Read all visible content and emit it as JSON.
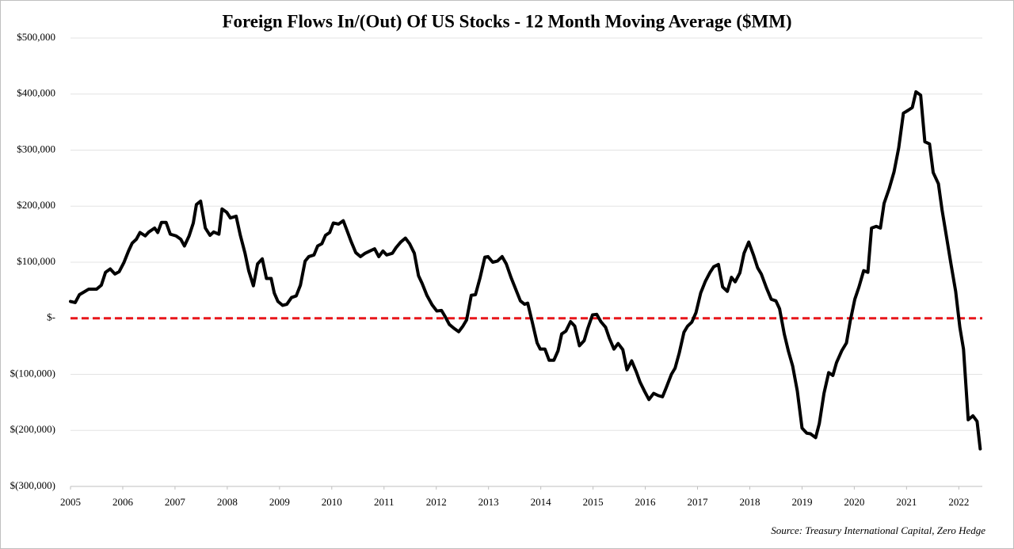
{
  "chart_data": {
    "type": "line",
    "title": "Foreign Flows In/(Out) Of US Stocks  - 12 Month Moving Average ($MM)",
    "source": "Source: Treasury International Capital, Zero Hedge",
    "xlim": [
      2005,
      2022.45
    ],
    "xticks": [
      2005,
      2006,
      2007,
      2008,
      2009,
      2010,
      2011,
      2012,
      2013,
      2014,
      2015,
      2016,
      2017,
      2018,
      2019,
      2020,
      2021,
      2022
    ],
    "ylim": [
      -300000,
      500000
    ],
    "yticks": [
      {
        "value": 500000,
        "label": "$500,000"
      },
      {
        "value": 400000,
        "label": "$400,000"
      },
      {
        "value": 300000,
        "label": "$300,000"
      },
      {
        "value": 200000,
        "label": "$200,000"
      },
      {
        "value": 100000,
        "label": "$100,000"
      },
      {
        "value": 0,
        "label": "$-"
      },
      {
        "value": -100000,
        "label": "$(100,000)"
      },
      {
        "value": -200000,
        "label": "$(200,000)"
      },
      {
        "value": -300000,
        "label": "$(300,000)"
      }
    ],
    "grid": true,
    "reference_line": {
      "value": 0,
      "color": "#e8161b"
    },
    "series": [
      {
        "color": "#000000",
        "x": [
          2005,
          2005.09,
          2005.17,
          2005.26,
          2005.35,
          2005.5,
          2005.59,
          2005.67,
          2005.76,
          2005.85,
          2005.93,
          2006.02,
          2006.11,
          2006.18,
          2006.26,
          2006.33,
          2006.43,
          2006.5,
          2006.61,
          2006.67,
          2006.74,
          2006.83,
          2006.91,
          2007.02,
          2007.11,
          2007.18,
          2007.27,
          2007.35,
          2007.41,
          2007.49,
          2007.58,
          2007.67,
          2007.74,
          2007.84,
          2007.9,
          2007.99,
          2008.06,
          2008.17,
          2008.25,
          2008.34,
          2008.41,
          2008.5,
          2008.58,
          2008.67,
          2008.75,
          2008.84,
          2008.9,
          2008.97,
          2009.06,
          2009.14,
          2009.23,
          2009.32,
          2009.4,
          2009.49,
          2009.56,
          2009.66,
          2009.73,
          2009.81,
          2009.88,
          2009.96,
          2010.03,
          2010.13,
          2010.22,
          2010.29,
          2010.37,
          2010.46,
          2010.55,
          2010.64,
          2010.75,
          2010.82,
          2010.9,
          2010.98,
          2011.05,
          2011.16,
          2011.23,
          2011.32,
          2011.41,
          2011.49,
          2011.58,
          2011.66,
          2011.73,
          2011.82,
          2011.92,
          2012.01,
          2012.1,
          2012.17,
          2012.25,
          2012.34,
          2012.43,
          2012.51,
          2012.58,
          2012.67,
          2012.75,
          2012.84,
          2012.93,
          2012.99,
          2013.08,
          2013.17,
          2013.26,
          2013.34,
          2013.43,
          2013.52,
          2013.61,
          2013.69,
          2013.75,
          2013.84,
          2013.93,
          2013.99,
          2014.08,
          2014.16,
          2014.25,
          2014.33,
          2014.4,
          2014.48,
          2014.57,
          2014.65,
          2014.74,
          2014.83,
          2014.9,
          2014.99,
          2015.07,
          2015.15,
          2015.24,
          2015.31,
          2015.4,
          2015.48,
          2015.57,
          2015.65,
          2015.74,
          2015.83,
          2015.9,
          2015.99,
          2016.07,
          2016.16,
          2016.25,
          2016.33,
          2016.4,
          2016.5,
          2016.57,
          2016.65,
          2016.74,
          2016.81,
          2016.89,
          2016.97,
          2017.06,
          2017.15,
          2017.24,
          2017.31,
          2017.4,
          2017.48,
          2017.57,
          2017.65,
          2017.72,
          2017.81,
          2017.89,
          2017.98,
          2018.07,
          2018.15,
          2018.22,
          2018.32,
          2018.41,
          2018.5,
          2018.57,
          2018.66,
          2018.74,
          2018.82,
          2018.91,
          2019,
          2019.09,
          2019.16,
          2019.26,
          2019.33,
          2019.42,
          2019.51,
          2019.59,
          2019.66,
          2019.76,
          2019.85,
          2019.92,
          2020.01,
          2020.09,
          2020.18,
          2020.26,
          2020.33,
          2020.42,
          2020.5,
          2020.57,
          2020.67,
          2020.76,
          2020.85,
          2020.94,
          2021.03,
          2021.11,
          2021.18,
          2021.27,
          2021.35,
          2021.44,
          2021.51,
          2021.61,
          2021.68,
          2021.76,
          2021.85,
          2021.94,
          2022.02,
          2022.09,
          2022.18,
          2022.27,
          2022.35,
          2022.41
        ],
        "values": [
          30000,
          28000,
          42000,
          47000,
          52000,
          52000,
          59000,
          82000,
          88000,
          79000,
          83000,
          99000,
          120000,
          134000,
          141000,
          153000,
          147000,
          154000,
          161000,
          153000,
          171000,
          171000,
          150000,
          147000,
          141000,
          129000,
          147000,
          170000,
          203000,
          209000,
          161000,
          148000,
          154000,
          150000,
          195000,
          189000,
          179000,
          182000,
          148000,
          116000,
          85000,
          58000,
          97000,
          106000,
          71000,
          71000,
          45000,
          30000,
          23000,
          25000,
          37000,
          40000,
          59000,
          102000,
          110000,
          113000,
          129000,
          133000,
          148000,
          153000,
          170000,
          168000,
          174000,
          157000,
          137000,
          117000,
          110000,
          116000,
          121000,
          124000,
          110000,
          120000,
          113000,
          116000,
          126000,
          136000,
          143000,
          133000,
          116000,
          76000,
          62000,
          41000,
          24000,
          13000,
          14000,
          3000,
          -11000,
          -18000,
          -24000,
          -14000,
          -3000,
          41000,
          42000,
          73000,
          109000,
          110000,
          100000,
          102000,
          110000,
          97000,
          73000,
          52000,
          31000,
          25000,
          27000,
          -8000,
          -44000,
          -55000,
          -55000,
          -75000,
          -75000,
          -58000,
          -28000,
          -23000,
          -6000,
          -14000,
          -49000,
          -40000,
          -18000,
          6000,
          7000,
          -6000,
          -16000,
          -35000,
          -55000,
          -45000,
          -56000,
          -92000,
          -76000,
          -96000,
          -114000,
          -131000,
          -145000,
          -134000,
          -138000,
          -140000,
          -124000,
          -100000,
          -89000,
          -62000,
          -25000,
          -14000,
          -7000,
          10000,
          45000,
          66000,
          82000,
          92000,
          96000,
          56000,
          48000,
          73000,
          65000,
          81000,
          116000,
          136000,
          113000,
          90000,
          79000,
          54000,
          34000,
          31000,
          17000,
          -28000,
          -59000,
          -85000,
          -130000,
          -196000,
          -205000,
          -206000,
          -213000,
          -188000,
          -134000,
          -97000,
          -102000,
          -79000,
          -58000,
          -44000,
          -6000,
          34000,
          56000,
          85000,
          82000,
          161000,
          164000,
          161000,
          205000,
          232000,
          261000,
          304000,
          366000,
          371000,
          376000,
          404000,
          398000,
          315000,
          311000,
          260000,
          240000,
          193000,
          148000,
          97000,
          48000,
          -16000,
          -55000,
          -181000,
          -174000,
          -184000,
          -233000
        ]
      }
    ]
  }
}
